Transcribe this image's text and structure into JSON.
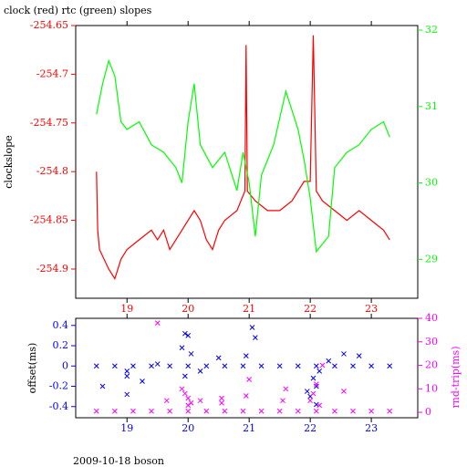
{
  "chart_data": [
    {
      "type": "line",
      "title": "clock (red) rtc (green) slopes",
      "ylabel": "clockslope",
      "xlim": [
        18.16,
        23.76
      ],
      "xticks": [
        19,
        20,
        21,
        22,
        23
      ],
      "ylim": [
        -254.93,
        -254.65
      ],
      "yticks": [
        -254.65,
        -254.7,
        -254.75,
        -254.8,
        -254.85,
        -254.9
      ],
      "y2lim": [
        28.49,
        32.06
      ],
      "y2ticks": [
        29,
        30,
        31,
        32
      ],
      "series": [
        {
          "name": "clock",
          "color": "#ff0000",
          "x": [
            18.5,
            18.52,
            18.55,
            18.7,
            18.8,
            18.9,
            19.0,
            19.2,
            19.4,
            19.5,
            19.6,
            19.7,
            19.9,
            20.0,
            20.1,
            20.2,
            20.3,
            20.4,
            20.5,
            20.6,
            20.8,
            20.93,
            20.95,
            20.97,
            21.1,
            21.3,
            21.5,
            21.7,
            21.9,
            22.0,
            22.05,
            22.1,
            22.2,
            22.4,
            22.6,
            22.8,
            23.0,
            23.2,
            23.3
          ],
          "values": [
            -254.8,
            -254.86,
            -254.88,
            -254.9,
            -254.91,
            -254.89,
            -254.88,
            -254.87,
            -254.86,
            -254.87,
            -254.86,
            -254.88,
            -254.86,
            -254.85,
            -254.84,
            -254.85,
            -254.87,
            -254.88,
            -254.86,
            -254.85,
            -254.84,
            -254.82,
            -254.67,
            -254.82,
            -254.83,
            -254.84,
            -254.84,
            -254.83,
            -254.81,
            -254.81,
            -254.66,
            -254.82,
            -254.83,
            -254.84,
            -254.85,
            -254.84,
            -254.85,
            -254.86,
            -254.87
          ]
        },
        {
          "name": "rtc",
          "color": "#00ff00",
          "axis": "y2",
          "x": [
            18.5,
            18.6,
            18.7,
            18.8,
            18.9,
            19.0,
            19.2,
            19.4,
            19.6,
            19.8,
            19.9,
            20.0,
            20.1,
            20.2,
            20.4,
            20.6,
            20.8,
            20.9,
            21.0,
            21.1,
            21.2,
            21.4,
            21.6,
            21.8,
            21.9,
            22.0,
            22.1,
            22.2,
            22.3,
            22.4,
            22.6,
            22.8,
            23.0,
            23.2,
            23.3
          ],
          "values": [
            30.9,
            31.3,
            31.6,
            31.4,
            30.8,
            30.7,
            30.8,
            30.5,
            30.4,
            30.2,
            30.0,
            30.8,
            31.3,
            30.5,
            30.2,
            30.4,
            29.9,
            30.4,
            30.0,
            29.3,
            30.1,
            30.5,
            31.2,
            30.7,
            30.3,
            29.8,
            29.1,
            29.2,
            29.3,
            30.2,
            30.4,
            30.5,
            30.7,
            30.8,
            30.6
          ]
        }
      ]
    },
    {
      "type": "scatter",
      "ylabel": "offset(ms)",
      "y2label": "rnd-trip(ms)",
      "xlim": [
        18.16,
        23.76
      ],
      "xticks": [
        19,
        20,
        21,
        22,
        23
      ],
      "ylim": [
        -0.51,
        0.47
      ],
      "yticks": [
        0.4,
        0.2,
        0,
        -0.2,
        -0.4
      ],
      "y2lim": [
        -2.3,
        40
      ],
      "y2ticks": [
        40,
        30,
        20,
        10,
        0
      ],
      "series": [
        {
          "name": "offset",
          "color": "#0000ff",
          "x": [
            18.5,
            18.8,
            19.1,
            19.4,
            19.7,
            20.0,
            20.3,
            20.6,
            20.9,
            21.2,
            21.5,
            21.8,
            22.1,
            22.4,
            22.7,
            23.0,
            23.3,
            18.6,
            19.0,
            19.0,
            19.0,
            19.25,
            19.5,
            19.9,
            19.95,
            20.0,
            20.05,
            19.95,
            20.2,
            20.5,
            20.95,
            21.05,
            21.1,
            21.95,
            22.0,
            22.05,
            22.1,
            22.1,
            22.15,
            22.3,
            22.55,
            22.8
          ],
          "values": [
            0,
            0,
            0,
            0,
            0,
            0,
            0,
            0,
            0,
            0,
            0,
            0,
            0,
            0,
            0,
            0,
            0,
            -0.2,
            -0.05,
            -0.1,
            -0.28,
            -0.15,
            0.02,
            0.18,
            0.32,
            0.3,
            0.12,
            -0.1,
            -0.05,
            0.08,
            0.1,
            0.38,
            0.28,
            -0.25,
            -0.3,
            -0.12,
            -0.38,
            -0.2,
            -0.05,
            0.05,
            0.12,
            0.1
          ]
        },
        {
          "name": "rnd-trip",
          "color": "#ff00ff",
          "axis": "y2",
          "x": [
            18.5,
            18.8,
            19.1,
            19.4,
            19.7,
            20.0,
            20.3,
            20.6,
            20.9,
            21.2,
            21.5,
            21.8,
            22.1,
            22.4,
            22.7,
            23.0,
            23.3,
            19.5,
            19.65,
            19.9,
            19.95,
            20.0,
            20.0,
            20.05,
            20.2,
            20.55,
            20.55,
            20.95,
            21.0,
            21.55,
            21.6,
            22.0,
            22.05,
            22.1,
            22.15,
            22.2,
            22.55
          ],
          "values": [
            0.5,
            0.5,
            0.5,
            0.5,
            0.5,
            0.5,
            0.5,
            0.5,
            0.5,
            0.5,
            0.5,
            0.5,
            0.5,
            0.5,
            0.5,
            0.5,
            0.5,
            38,
            5,
            10,
            8,
            6,
            3,
            4,
            5,
            4,
            6,
            7,
            14,
            5,
            10,
            5,
            8,
            12,
            3,
            20,
            9
          ]
        }
      ]
    }
  ],
  "footer": "2009-10-18 boson"
}
